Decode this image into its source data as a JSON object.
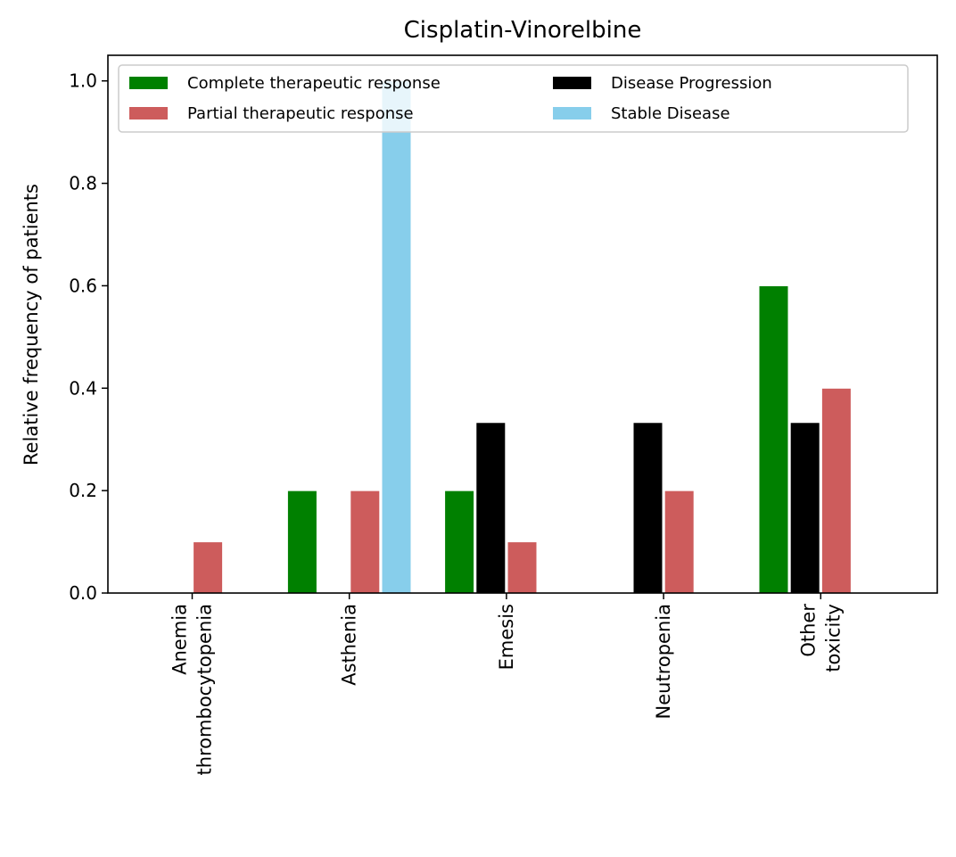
{
  "chart_data": {
    "type": "bar",
    "title": "Cisplatin-Vinorelbine",
    "xlabel": "",
    "ylabel": "Relative frequency of patients",
    "ylim": [
      0,
      1.05
    ],
    "yticks": [
      "0.0",
      "0.2",
      "0.4",
      "0.6",
      "0.8",
      "1.0"
    ],
    "grid": false,
    "legend_position": "top",
    "categories": [
      [
        "Anemia",
        "thrombocytopenia"
      ],
      [
        "Asthenia"
      ],
      [
        "Emesis"
      ],
      [
        "Neutropenia"
      ],
      [
        "Other",
        "toxicity"
      ]
    ],
    "series": [
      {
        "name": "Complete therapeutic response",
        "color": "#008000",
        "values": [
          0,
          0.2,
          0.2,
          0,
          0.6
        ]
      },
      {
        "name": "Disease Progression",
        "color": "#000000",
        "values": [
          0,
          0,
          0.333,
          0.333,
          0.333
        ]
      },
      {
        "name": "Partial therapeutic response",
        "color": "#cd5c5c",
        "values": [
          0.1,
          0.2,
          0.1,
          0.2,
          0.4
        ]
      },
      {
        "name": "Stable Disease",
        "color": "#87ceeb",
        "values": [
          0,
          1.0,
          0,
          0,
          0
        ]
      }
    ]
  }
}
